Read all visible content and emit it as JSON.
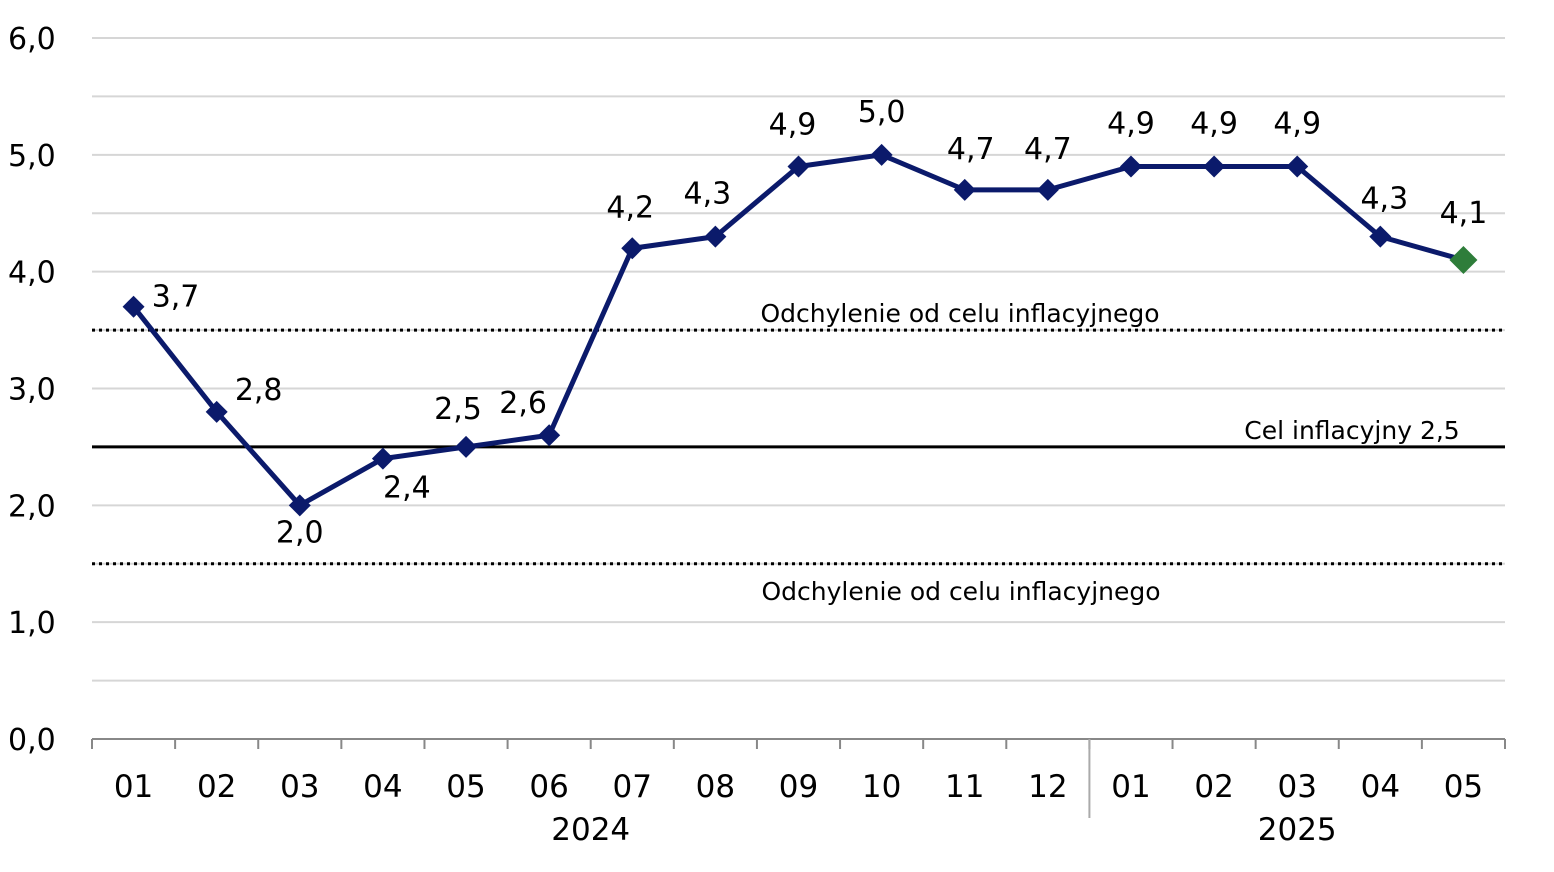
{
  "chart_data": {
    "type": "line",
    "x_groups": [
      {
        "label": "2024",
        "categories": [
          "01",
          "02",
          "03",
          "04",
          "05",
          "06",
          "07",
          "08",
          "09",
          "10",
          "11",
          "12"
        ]
      },
      {
        "label": "2025",
        "categories": [
          "01",
          "02",
          "03",
          "04",
          "05"
        ]
      }
    ],
    "series": [
      {
        "values": [
          3.7,
          2.8,
          2.0,
          2.4,
          2.5,
          2.6,
          4.2,
          4.3,
          4.9,
          5.0,
          4.7,
          4.7,
          4.9,
          4.9,
          4.9,
          4.3,
          4.1
        ],
        "labels": [
          "3,7",
          "2,8",
          "2,0",
          "2,4",
          "2,5",
          "2,6",
          "4,2",
          "4,3",
          "4,9",
          "5,0",
          "4,7",
          "4,7",
          "4,9",
          "4,9",
          "4,9",
          "4,3",
          "4,1"
        ],
        "color": "#0b1a6b",
        "last_point_color": "#2e7d3a"
      }
    ],
    "reference_lines": [
      {
        "value": 3.5,
        "style": "dotted",
        "label": "Odchylenie od celu inflacyjnego"
      },
      {
        "value": 2.5,
        "style": "solid",
        "label": "Cel inflacyjny 2,5"
      },
      {
        "value": 1.5,
        "style": "dotted",
        "label": "Odchylenie od celu inflacyjnego"
      }
    ],
    "y_ticks": [
      "0,0",
      "1,0",
      "2,0",
      "3,0",
      "4,0",
      "5,0",
      "6,0"
    ],
    "ylim": [
      0,
      6
    ],
    "grid": true,
    "title": "",
    "xlabel": "",
    "ylabel": ""
  }
}
